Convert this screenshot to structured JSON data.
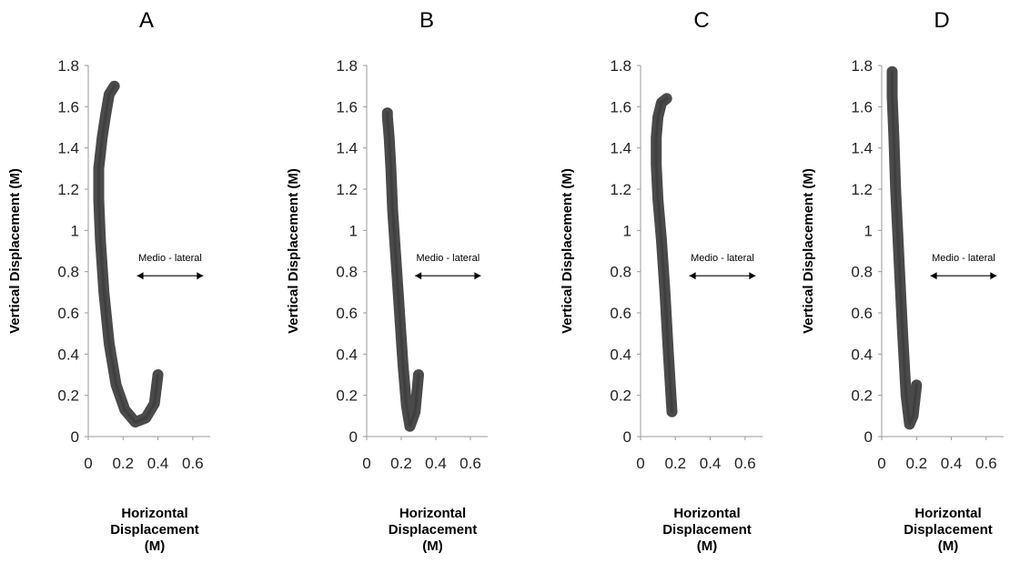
{
  "chart_data": [
    {
      "type": "line",
      "title": "A",
      "xlabel": [
        "Horizontal",
        "Displacement",
        "(M)"
      ],
      "ylabel": "Vertical  Displacement  (M)",
      "xlim": [
        0,
        0.7
      ],
      "ylim": [
        0,
        1.8
      ],
      "xticks": [
        "0",
        "0.2",
        "0.4",
        "0.6"
      ],
      "yticks": [
        "0",
        "0.2",
        "0.4",
        "0.6",
        "0.8",
        "1",
        "1.2",
        "1.4",
        "1.6",
        "1.8"
      ],
      "annotation": "Medio - lateral",
      "color": "#4a4a4a",
      "series": [
        {
          "x": [
            0.4,
            0.38,
            0.33,
            0.27,
            0.21,
            0.16,
            0.12,
            0.09,
            0.07,
            0.06,
            0.06,
            0.08,
            0.1,
            0.12,
            0.15
          ],
          "y": [
            0.3,
            0.16,
            0.09,
            0.07,
            0.13,
            0.25,
            0.45,
            0.7,
            0.95,
            1.15,
            1.3,
            1.45,
            1.56,
            1.66,
            1.7
          ]
        }
      ]
    },
    {
      "type": "line",
      "title": "B",
      "xlabel": [
        "Horizontal",
        "Displacement",
        "(M)"
      ],
      "ylabel": "Vertical  Displacement  (M)",
      "xlim": [
        0,
        0.7
      ],
      "ylim": [
        0,
        1.8
      ],
      "xticks": [
        "0",
        "0.2",
        "0.4",
        "0.6"
      ],
      "yticks": [
        "0",
        "0.2",
        "0.4",
        "0.6",
        "0.8",
        "1",
        "1.2",
        "1.4",
        "1.6",
        "1.8"
      ],
      "annotation": "Medio - lateral",
      "color": "#4a4a4a",
      "series": [
        {
          "x": [
            0.3,
            0.28,
            0.25,
            0.23,
            0.21,
            0.19,
            0.17,
            0.15,
            0.14,
            0.13,
            0.12,
            0.12
          ],
          "y": [
            0.3,
            0.12,
            0.05,
            0.15,
            0.35,
            0.6,
            0.85,
            1.1,
            1.3,
            1.45,
            1.55,
            1.57
          ]
        }
      ]
    },
    {
      "type": "line",
      "title": "C",
      "xlabel": [
        "Horizontal",
        "Displacement",
        "(M)"
      ],
      "ylabel": "Vertical  Displacement  (M)",
      "xlim": [
        0,
        0.7
      ],
      "ylim": [
        0,
        1.8
      ],
      "xticks": [
        "0",
        "0.2",
        "0.4",
        "0.6"
      ],
      "yticks": [
        "0",
        "0.2",
        "0.4",
        "0.6",
        "0.8",
        "1",
        "1.2",
        "1.4",
        "1.6",
        "1.8"
      ],
      "annotation": "Medio - lateral",
      "color": "#4a4a4a",
      "series": [
        {
          "x": [
            0.18,
            0.16,
            0.14,
            0.12,
            0.1,
            0.09,
            0.09,
            0.1,
            0.12,
            0.15
          ],
          "y": [
            0.12,
            0.4,
            0.7,
            0.95,
            1.15,
            1.32,
            1.45,
            1.55,
            1.62,
            1.64
          ]
        }
      ]
    },
    {
      "type": "line",
      "title": "D",
      "xlabel": [
        "Horizontal",
        "Displacement",
        "(M)"
      ],
      "ylabel": "Vertical  Displacement  (M)",
      "xlim": [
        0,
        0.7
      ],
      "ylim": [
        0,
        1.8
      ],
      "xticks": [
        "0",
        "0.2",
        "0.4",
        "0.6"
      ],
      "yticks": [
        "0",
        "0.2",
        "0.4",
        "0.6",
        "0.8",
        "1",
        "1.2",
        "1.4",
        "1.6",
        "1.8"
      ],
      "annotation": "Medio - lateral",
      "color": "#4a4a4a",
      "series": [
        {
          "x": [
            0.2,
            0.18,
            0.16,
            0.14,
            0.12,
            0.1,
            0.08,
            0.07,
            0.06,
            0.06
          ],
          "y": [
            0.25,
            0.1,
            0.06,
            0.2,
            0.5,
            0.85,
            1.2,
            1.45,
            1.65,
            1.77
          ]
        }
      ]
    }
  ]
}
